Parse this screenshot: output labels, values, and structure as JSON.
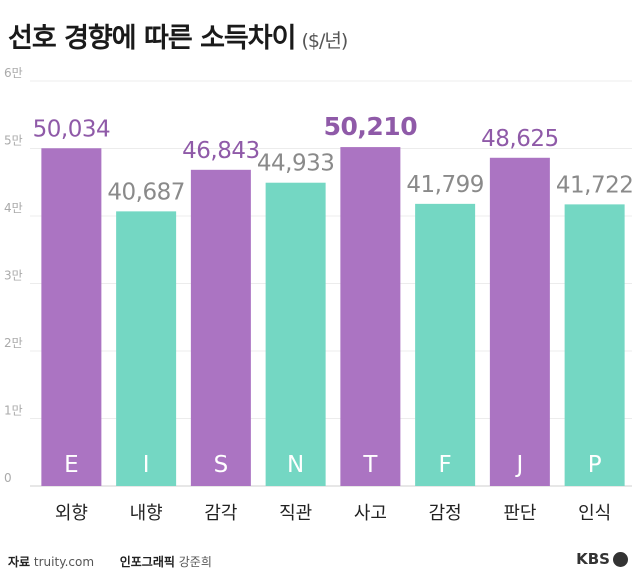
{
  "title": "선호 경향에 따른 소득차이",
  "title_unit": "($/년)",
  "chart_data": {
    "type": "bar",
    "title": "선호 경향에 따른 소득차이",
    "unit": "($/년)",
    "categories": [
      "외향",
      "내향",
      "감각",
      "직관",
      "사고",
      "감정",
      "판단",
      "인식"
    ],
    "letters": [
      "E",
      "I",
      "S",
      "N",
      "T",
      "F",
      "J",
      "P"
    ],
    "values": [
      50034,
      40687,
      46843,
      44933,
      50210,
      41799,
      48625,
      41722
    ],
    "value_labels": [
      "50,034",
      "40,687",
      "46,843",
      "44,933",
      "50,210",
      "41,799",
      "48,625",
      "41,722"
    ],
    "highlight_index": 4,
    "bar_colors": [
      "#ab74c2",
      "#74d7c3",
      "#ab74c2",
      "#74d7c3",
      "#ab74c2",
      "#74d7c3",
      "#ab74c2",
      "#74d7c3"
    ],
    "label_colors": [
      "#8f5aa8",
      "#8a8a8a",
      "#8f5aa8",
      "#8a8a8a",
      "#8f5aa8",
      "#8a8a8a",
      "#8f5aa8",
      "#8a8a8a"
    ],
    "yticks": [
      0,
      10000,
      20000,
      30000,
      40000,
      50000,
      60000
    ],
    "ytick_labels": [
      "0",
      "1만",
      "2만",
      "3만",
      "4만",
      "5만",
      "6만"
    ],
    "ylim": [
      0,
      60000
    ],
    "grid": true
  },
  "footer": {
    "source_label": "자료",
    "source_value": "truity.com",
    "graphic_label": "인포그래픽",
    "graphic_value": "강준희"
  },
  "logo": {
    "text": "KBS"
  }
}
